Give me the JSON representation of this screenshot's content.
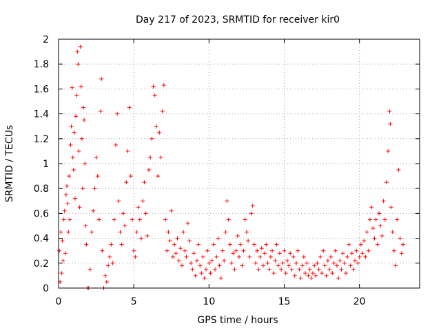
{
  "chart_data": {
    "type": "scatter",
    "title": "Day 217 of 2023, SRMTID for receiver kir0",
    "xlabel": "GPS time / hours",
    "ylabel": "SRMTID / TECUs",
    "xlim": [
      0,
      24
    ],
    "ylim": [
      0,
      2
    ],
    "grid": true,
    "marker": "+",
    "color": "#ff0000",
    "x_ticks": [
      0,
      5,
      10,
      15,
      20
    ],
    "x_tick_labels": [
      "0",
      "5",
      "10",
      "15",
      "20"
    ],
    "y_ticks": [
      0,
      0.2,
      0.4,
      0.6,
      0.8,
      1,
      1.2,
      1.4,
      1.6,
      1.8,
      2
    ],
    "y_tick_labels": [
      "0",
      "0.2",
      "0.4",
      "0.6",
      "0.8",
      "1",
      "1.2",
      "1.4",
      "1.6",
      "1.8",
      "2"
    ],
    "series": [
      {
        "name": "SRMTID",
        "points": [
          [
            0.05,
            0.3
          ],
          [
            0.1,
            0.05
          ],
          [
            0.15,
            0.45
          ],
          [
            0.2,
            0.12
          ],
          [
            0.25,
            0.38
          ],
          [
            0.3,
            0.22
          ],
          [
            0.35,
            0.55
          ],
          [
            0.4,
            0.62
          ],
          [
            0.45,
            0.28
          ],
          [
            0.5,
            0.75
          ],
          [
            0.55,
            0.82
          ],
          [
            0.6,
            0.68
          ],
          [
            0.65,
            0.45
          ],
          [
            0.7,
            0.9
          ],
          [
            0.75,
            0.55
          ],
          [
            0.8,
            1.15
          ],
          [
            0.85,
            1.3
          ],
          [
            0.9,
            1.61
          ],
          [
            0.95,
            1.05
          ],
          [
            1.0,
            0.95
          ],
          [
            1.05,
            1.25
          ],
          [
            1.1,
            0.72
          ],
          [
            1.15,
            1.38
          ],
          [
            1.2,
            1.55
          ],
          [
            1.25,
            1.9
          ],
          [
            1.3,
            1.8
          ],
          [
            1.35,
            1.1
          ],
          [
            1.4,
            0.65
          ],
          [
            1.45,
            1.94
          ],
          [
            1.5,
            1.62
          ],
          [
            1.55,
            1.2
          ],
          [
            1.6,
            0.8
          ],
          [
            1.65,
            1.45
          ],
          [
            1.7,
            1.35
          ],
          [
            1.75,
            1.0
          ],
          [
            1.8,
            0.5
          ],
          [
            1.85,
            0.35
          ],
          [
            1.9,
            0.0
          ],
          [
            2.0,
            0.0
          ],
          [
            2.1,
            0.15
          ],
          [
            2.2,
            0.45
          ],
          [
            2.3,
            0.62
          ],
          [
            2.4,
            0.8
          ],
          [
            2.5,
            1.05
          ],
          [
            2.6,
            0.9
          ],
          [
            2.7,
            0.55
          ],
          [
            2.8,
            1.42
          ],
          [
            2.85,
            1.68
          ],
          [
            2.9,
            0.3
          ],
          [
            3.0,
            0.0
          ],
          [
            3.1,
            0.1
          ],
          [
            3.2,
            0.05
          ],
          [
            3.3,
            0.18
          ],
          [
            3.4,
            0.25
          ],
          [
            3.5,
            0.35
          ],
          [
            3.6,
            0.2
          ],
          [
            3.7,
            0.55
          ],
          [
            3.8,
            1.15
          ],
          [
            3.9,
            1.4
          ],
          [
            4.0,
            0.7
          ],
          [
            4.1,
            0.45
          ],
          [
            4.2,
            0.35
          ],
          [
            4.3,
            0.6
          ],
          [
            4.4,
            0.5
          ],
          [
            4.5,
            0.85
          ],
          [
            4.6,
            1.1
          ],
          [
            4.7,
            1.45
          ],
          [
            4.8,
            0.9
          ],
          [
            4.9,
            0.55
          ],
          [
            5.0,
            0.3
          ],
          [
            5.1,
            0.25
          ],
          [
            5.2,
            0.45
          ],
          [
            5.3,
            0.65
          ],
          [
            5.4,
            0.55
          ],
          [
            5.5,
            0.4
          ],
          [
            5.6,
            0.7
          ],
          [
            5.7,
            0.85
          ],
          [
            5.8,
            0.6
          ],
          [
            5.9,
            0.42
          ],
          [
            6.0,
            0.95
          ],
          [
            6.1,
            1.05
          ],
          [
            6.2,
            1.2
          ],
          [
            6.3,
            1.62
          ],
          [
            6.4,
            1.55
          ],
          [
            6.5,
            1.3
          ],
          [
            6.6,
            0.9
          ],
          [
            6.7,
            1.25
          ],
          [
            6.8,
            1.05
          ],
          [
            6.9,
            1.42
          ],
          [
            7.0,
            1.63
          ],
          [
            7.1,
            0.55
          ],
          [
            7.2,
            0.3
          ],
          [
            7.3,
            0.45
          ],
          [
            7.4,
            0.38
          ],
          [
            7.5,
            0.62
          ],
          [
            7.6,
            0.25
          ],
          [
            7.7,
            0.35
          ],
          [
            7.8,
            0.28
          ],
          [
            7.9,
            0.4
          ],
          [
            8.0,
            0.22
          ],
          [
            8.1,
            0.32
          ],
          [
            8.2,
            0.18
          ],
          [
            8.3,
            0.45
          ],
          [
            8.4,
            0.3
          ],
          [
            8.5,
            0.25
          ],
          [
            8.6,
            0.52
          ],
          [
            8.7,
            0.38
          ],
          [
            8.8,
            0.2
          ],
          [
            8.9,
            0.15
          ],
          [
            9.0,
            0.28
          ],
          [
            9.1,
            0.1
          ],
          [
            9.2,
            0.22
          ],
          [
            9.3,
            0.35
          ],
          [
            9.4,
            0.18
          ],
          [
            9.5,
            0.12
          ],
          [
            9.6,
            0.25
          ],
          [
            9.7,
            0.08
          ],
          [
            9.8,
            0.15
          ],
          [
            9.9,
            0.3
          ],
          [
            10.0,
            0.2
          ],
          [
            10.1,
            0.12
          ],
          [
            10.2,
            0.22
          ],
          [
            10.3,
            0.35
          ],
          [
            10.4,
            0.15
          ],
          [
            10.5,
            0.25
          ],
          [
            10.6,
            0.4
          ],
          [
            10.7,
            0.18
          ],
          [
            10.8,
            0.08
          ],
          [
            10.9,
            0.3
          ],
          [
            11.0,
            0.22
          ],
          [
            11.1,
            0.45
          ],
          [
            11.2,
            0.7
          ],
          [
            11.3,
            0.55
          ],
          [
            11.4,
            0.35
          ],
          [
            11.5,
            0.2
          ],
          [
            11.6,
            0.28
          ],
          [
            11.7,
            0.15
          ],
          [
            11.8,
            0.3
          ],
          [
            11.9,
            0.42
          ],
          [
            12.0,
            0.25
          ],
          [
            12.1,
            0.35
          ],
          [
            12.2,
            0.18
          ],
          [
            12.3,
            0.3
          ],
          [
            12.4,
            0.55
          ],
          [
            12.5,
            0.45
          ],
          [
            12.6,
            0.38
          ],
          [
            12.7,
            0.25
          ],
          [
            12.8,
            0.6
          ],
          [
            12.9,
            0.66
          ],
          [
            13.0,
            0.35
          ],
          [
            13.1,
            0.2
          ],
          [
            13.2,
            0.3
          ],
          [
            13.3,
            0.15
          ],
          [
            13.4,
            0.25
          ],
          [
            13.5,
            0.32
          ],
          [
            13.6,
            0.18
          ],
          [
            13.7,
            0.28
          ],
          [
            13.8,
            0.35
          ],
          [
            13.9,
            0.2
          ],
          [
            14.0,
            0.15
          ],
          [
            14.1,
            0.25
          ],
          [
            14.2,
            0.3
          ],
          [
            14.3,
            0.12
          ],
          [
            14.4,
            0.22
          ],
          [
            14.5,
            0.35
          ],
          [
            14.6,
            0.18
          ],
          [
            14.7,
            0.28
          ],
          [
            14.8,
            0.15
          ],
          [
            14.9,
            0.2
          ],
          [
            15.0,
            0.3
          ],
          [
            15.1,
            0.12
          ],
          [
            15.2,
            0.22
          ],
          [
            15.3,
            0.18
          ],
          [
            15.4,
            0.28
          ],
          [
            15.5,
            0.15
          ],
          [
            15.6,
            0.25
          ],
          [
            15.7,
            0.1
          ],
          [
            15.8,
            0.2
          ],
          [
            15.9,
            0.3
          ],
          [
            16.0,
            0.15
          ],
          [
            16.1,
            0.08
          ],
          [
            16.2,
            0.18
          ],
          [
            16.3,
            0.25
          ],
          [
            16.4,
            0.12
          ],
          [
            16.5,
            0.2
          ],
          [
            16.6,
            0.1
          ],
          [
            16.7,
            0.15
          ],
          [
            16.8,
            0.08
          ],
          [
            16.9,
            0.12
          ],
          [
            17.0,
            0.18
          ],
          [
            17.1,
            0.1
          ],
          [
            17.2,
            0.2
          ],
          [
            17.3,
            0.15
          ],
          [
            17.4,
            0.25
          ],
          [
            17.5,
            0.12
          ],
          [
            17.6,
            0.3
          ],
          [
            17.7,
            0.18
          ],
          [
            17.8,
            0.1
          ],
          [
            17.9,
            0.22
          ],
          [
            18.0,
            0.15
          ],
          [
            18.1,
            0.25
          ],
          [
            18.2,
            0.12
          ],
          [
            18.3,
            0.2
          ],
          [
            18.4,
            0.3
          ],
          [
            18.5,
            0.18
          ],
          [
            18.6,
            0.08
          ],
          [
            18.7,
            0.22
          ],
          [
            18.8,
            0.15
          ],
          [
            18.9,
            0.28
          ],
          [
            19.0,
            0.2
          ],
          [
            19.1,
            0.12
          ],
          [
            19.2,
            0.25
          ],
          [
            19.3,
            0.35
          ],
          [
            19.4,
            0.18
          ],
          [
            19.5,
            0.28
          ],
          [
            19.6,
            0.15
          ],
          [
            19.7,
            0.22
          ],
          [
            19.8,
            0.3
          ],
          [
            19.9,
            0.2
          ],
          [
            20.0,
            0.25
          ],
          [
            20.1,
            0.35
          ],
          [
            20.2,
            0.28
          ],
          [
            20.3,
            0.38
          ],
          [
            20.4,
            0.25
          ],
          [
            20.5,
            0.45
          ],
          [
            20.6,
            0.3
          ],
          [
            20.7,
            0.55
          ],
          [
            20.8,
            0.65
          ],
          [
            20.9,
            0.48
          ],
          [
            21.0,
            0.4
          ],
          [
            21.1,
            0.55
          ],
          [
            21.2,
            0.35
          ],
          [
            21.3,
            0.6
          ],
          [
            21.4,
            0.5
          ],
          [
            21.5,
            0.42
          ],
          [
            21.6,
            0.7
          ],
          [
            21.7,
            0.55
          ],
          [
            21.8,
            0.85
          ],
          [
            21.9,
            1.1
          ],
          [
            22.0,
            1.42
          ],
          [
            22.05,
            1.32
          ],
          [
            22.1,
            0.65
          ],
          [
            22.2,
            0.45
          ],
          [
            22.3,
            0.3
          ],
          [
            22.4,
            0.18
          ],
          [
            22.5,
            0.55
          ],
          [
            22.6,
            0.95
          ],
          [
            22.7,
            0.4
          ],
          [
            22.8,
            0.28
          ],
          [
            22.9,
            0.35
          ]
        ]
      }
    ]
  }
}
